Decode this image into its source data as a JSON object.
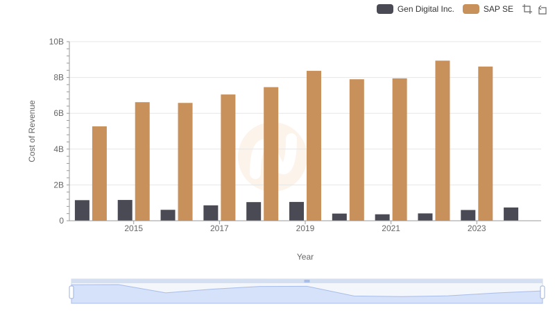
{
  "legend": [
    {
      "name": "Gen Digital Inc.",
      "color": "#4a4a55"
    },
    {
      "name": "SAP SE",
      "color": "#c8915c"
    }
  ],
  "toolbox": {
    "icons": [
      "zoom-icon",
      "restore-icon"
    ]
  },
  "chart_data": {
    "type": "bar",
    "xlabel": "Year",
    "ylabel": "Cost of Revenue",
    "categories": [
      "2014",
      "2015",
      "2016",
      "2017",
      "2018",
      "2019",
      "2020",
      "2021",
      "2022",
      "2023",
      "2024"
    ],
    "x_tick_labels": [
      "2015",
      "2017",
      "2019",
      "2021",
      "2023"
    ],
    "y_tick_labels": [
      "0",
      "2B",
      "4B",
      "6B",
      "8B",
      "10B"
    ],
    "ylim": [
      0,
      10000000000
    ],
    "grid": true,
    "legend_position": "top-right",
    "series": [
      {
        "name": "Gen Digital Inc.",
        "color": "#4a4a55",
        "values": [
          1150000000,
          1160000000,
          610000000,
          860000000,
          1040000000,
          1050000000,
          400000000,
          360000000,
          410000000,
          600000000,
          740000000
        ]
      },
      {
        "name": "SAP SE",
        "color": "#c8915c",
        "values": [
          5270000000,
          6620000000,
          6580000000,
          7050000000,
          7460000000,
          8370000000,
          7900000000,
          7950000000,
          8940000000,
          8610000000,
          null
        ]
      }
    ],
    "data_zoom": {
      "start_percent": 0,
      "end_percent": 100
    }
  }
}
